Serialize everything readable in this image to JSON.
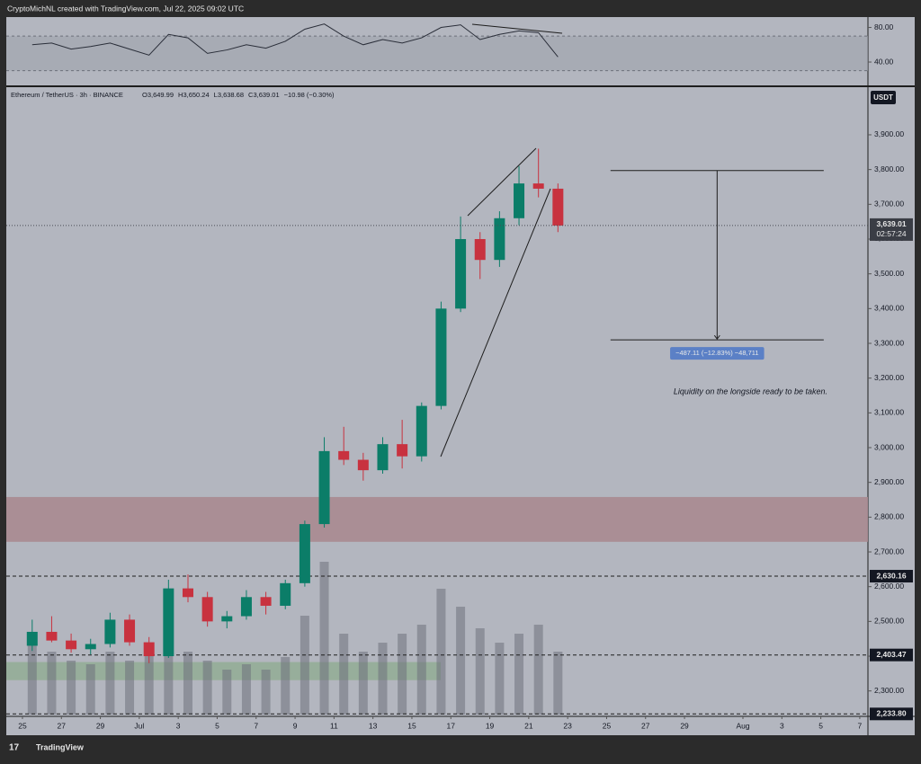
{
  "header": {
    "caption": "CryptoMichNL created with TradingView.com, Jul 22, 2025 09:02 UTC",
    "brand": "TradingView"
  },
  "chart_data": [
    {
      "type": "candlestick",
      "title": "Ethereum / TetherUS · 3h · BINANCE",
      "ohlc_legend": [
        "O3,649.99",
        "H3,650.24",
        "L3,638.68",
        "C3,639.01",
        "−10.98 (−0.30%)"
      ],
      "currency": "USDT",
      "x": [
        0.5,
        1.5,
        2.5,
        3.5,
        4.5,
        5.5,
        6.5,
        7.5,
        8.5,
        9.5,
        10.5,
        11.5,
        12.5,
        13.5,
        14.5,
        15.5,
        16.5,
        17.5,
        18.5,
        19.5,
        20.5,
        21.5,
        22.5,
        23.5,
        24.5,
        25.5,
        26.5,
        27.5
      ],
      "open": [
        2430,
        2470,
        2445,
        2420,
        2435,
        2505,
        2440,
        2400,
        2595,
        2570,
        2500,
        2515,
        2570,
        2545,
        2610,
        2780,
        2990,
        2965,
        2935,
        3010,
        2975,
        3120,
        3400,
        3600,
        3540,
        3660,
        3760,
        3745
      ],
      "high": [
        2505,
        2515,
        2465,
        2450,
        2525,
        2520,
        2455,
        2620,
        2635,
        2585,
        2530,
        2590,
        2585,
        2620,
        2790,
        3030,
        3060,
        2985,
        3030,
        3080,
        3130,
        3420,
        3665,
        3620,
        3680,
        3810,
        3860,
        3760
      ],
      "low": [
        2415,
        2440,
        2410,
        2405,
        2425,
        2430,
        2380,
        2395,
        2555,
        2485,
        2480,
        2505,
        2520,
        2535,
        2600,
        2770,
        2950,
        2905,
        2925,
        2940,
        2960,
        3110,
        3390,
        3485,
        3520,
        3640,
        3720,
        3620
      ],
      "close": [
        2470,
        2445,
        2420,
        2435,
        2505,
        2440,
        2400,
        2595,
        2570,
        2500,
        2515,
        2570,
        2545,
        2610,
        2780,
        2990,
        2965,
        2935,
        3010,
        2975,
        3120,
        3400,
        3600,
        3540,
        3660,
        3760,
        3745,
        3639.01
      ],
      "up_color": "#0b7d68",
      "down_color": "#c8323f",
      "volume": {
        "values": [
          40,
          35,
          30,
          28,
          35,
          30,
          38,
          45,
          35,
          30,
          25,
          28,
          25,
          32,
          55,
          85,
          45,
          35,
          40,
          45,
          50,
          70,
          60,
          48,
          40,
          45,
          50,
          35
        ],
        "ylim": [
          0,
          100
        ],
        "color": "#6e717b"
      },
      "xlim": [
        -0.83,
        43.42
      ],
      "xticks": [
        {
          "value": 0,
          "label": "25"
        },
        {
          "value": 2,
          "label": "27"
        },
        {
          "value": 4,
          "label": "29"
        },
        {
          "value": 6,
          "label": "Jul"
        },
        {
          "value": 8,
          "label": "3"
        },
        {
          "value": 10,
          "label": "5"
        },
        {
          "value": 12,
          "label": "7"
        },
        {
          "value": 14,
          "label": "9"
        },
        {
          "value": 16,
          "label": "11"
        },
        {
          "value": 18,
          "label": "13"
        },
        {
          "value": 20,
          "label": "15"
        },
        {
          "value": 22,
          "label": "17"
        },
        {
          "value": 24,
          "label": "19"
        },
        {
          "value": 26,
          "label": "21"
        },
        {
          "value": 28,
          "label": "23"
        },
        {
          "value": 30,
          "label": "25"
        },
        {
          "value": 32,
          "label": "27"
        },
        {
          "value": 34,
          "label": "29"
        },
        {
          "value": 37,
          "label": "Aug"
        },
        {
          "value": 39,
          "label": "3"
        },
        {
          "value": 41,
          "label": "5"
        },
        {
          "value": 43,
          "label": "7"
        }
      ],
      "ylim": [
        2232,
        4037
      ],
      "yticks": [
        {
          "value": 2300,
          "label": "2,300.00"
        },
        {
          "value": 2400,
          "label": "2,400.00"
        },
        {
          "value": 2500,
          "label": "2,500.00"
        },
        {
          "value": 2600,
          "label": "2,600.00"
        },
        {
          "value": 2700,
          "label": "2,700.00"
        },
        {
          "value": 2800,
          "label": "2,800.00"
        },
        {
          "value": 2900,
          "label": "2,900.00"
        },
        {
          "value": 3000,
          "label": "3,000.00"
        },
        {
          "value": 3100,
          "label": "3,100.00"
        },
        {
          "value": 3200,
          "label": "3,200.00"
        },
        {
          "value": 3300,
          "label": "3,300.00"
        },
        {
          "value": 3400,
          "label": "3,400.00"
        },
        {
          "value": 3500,
          "label": "3,500.00"
        },
        {
          "value": 3600,
          "label": "3,600.00"
        },
        {
          "value": 3700,
          "label": "3,700.00"
        },
        {
          "value": 3800,
          "label": "3,800.00"
        },
        {
          "value": 3900,
          "label": "3,900.00"
        }
      ],
      "price_label": {
        "value": 3639.01,
        "label": "3,639.01",
        "countdown": "02:57:24"
      },
      "levels": [
        {
          "value": 2630.16,
          "label": "2,630.16"
        },
        {
          "value": 2403.47,
          "label": "2,403.47"
        },
        {
          "value": 2233.8,
          "label": "2,233.80"
        }
      ],
      "zones": [
        {
          "range": [
            2729,
            2858
          ],
          "x_range": [
            -0.83,
            43.42
          ],
          "color": "#a98a90"
        },
        {
          "range": [
            2331,
            2383
          ],
          "x_range": [
            -0.83,
            21.48
          ],
          "color": "#93ad97"
        }
      ],
      "measure": {
        "from": 3797,
        "to": 3310,
        "x_range": [
          30.2,
          41.15
        ],
        "label": "−487.11 (−12.83%) −48,711",
        "color": "#5b80c6"
      },
      "annotation": "Liquidity on the longside ready to be taken."
    },
    {
      "type": "line",
      "x": [
        0.5,
        1.5,
        2.5,
        3.5,
        4.5,
        5.5,
        6.5,
        7.5,
        8.5,
        9.5,
        10.5,
        11.5,
        12.5,
        13.5,
        14.5,
        15.5,
        16.5,
        17.5,
        18.5,
        19.5,
        20.5,
        21.5,
        22.5,
        23.5,
        24.5,
        25.5,
        26.5,
        27.5
      ],
      "values": [
        60,
        62,
        55,
        58,
        62,
        55,
        48,
        72,
        68,
        50,
        54,
        60,
        56,
        64,
        78,
        84,
        70,
        60,
        66,
        62,
        68,
        80,
        83,
        66,
        72,
        76,
        74,
        46
      ],
      "color": "#2a2e39",
      "ylim": [
        13,
        92
      ],
      "yticks": [
        {
          "value": 80,
          "label": "80.00"
        },
        {
          "value": 40,
          "label": "40.00"
        }
      ],
      "bands": [
        30,
        70
      ]
    }
  ]
}
